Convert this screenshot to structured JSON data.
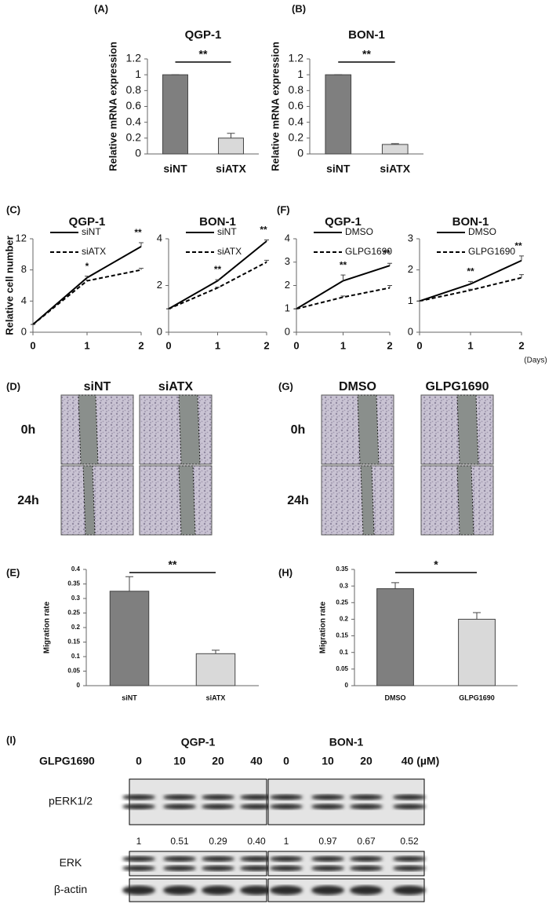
{
  "chart_data": [
    {
      "type": "bar",
      "panel": "(A)",
      "title": "QGP-1",
      "y_label": "Relative mRNA expression",
      "categories": [
        "siNT",
        "siATX"
      ],
      "values": [
        1,
        0.2
      ],
      "errors": [
        0,
        0.06
      ],
      "colors": [
        "#7f7f7f",
        "#d9d9d9"
      ],
      "ylim": [
        0,
        1.2
      ],
      "yticks": [
        0,
        0.2,
        0.4,
        0.6,
        0.8,
        1,
        1.2
      ],
      "significance": "**"
    },
    {
      "type": "bar",
      "panel": "(B)",
      "title": "BON-1",
      "y_label": "Relative mRNA expression",
      "categories": [
        "siNT",
        "siATX"
      ],
      "values": [
        1,
        0.12
      ],
      "errors": [
        0,
        0.01
      ],
      "colors": [
        "#7f7f7f",
        "#d9d9d9"
      ],
      "ylim": [
        0,
        1.2
      ],
      "yticks": [
        0,
        0.2,
        0.4,
        0.6,
        0.8,
        1,
        1.2
      ],
      "significance": "**"
    },
    {
      "type": "line",
      "panel": "(C)",
      "title": "QGP-1",
      "y_label": "Relative cell number",
      "x": [
        0,
        1,
        2
      ],
      "xlim": [
        0,
        2
      ],
      "xticks": [
        0,
        1,
        2
      ],
      "ylim": [
        0,
        12
      ],
      "yticks": [
        0,
        4,
        8,
        12
      ],
      "series": [
        {
          "name": "siNT",
          "color": "#000000",
          "dashed": false,
          "values": [
            1,
            7,
            11
          ],
          "errors": [
            0,
            0.2,
            0.5
          ]
        },
        {
          "name": "siATX",
          "color": "#000000",
          "dashed": true,
          "values": [
            1,
            6.6,
            8
          ],
          "errors": [
            0,
            0.1,
            0.2
          ]
        }
      ],
      "annotations": [
        {
          "text": "*",
          "x": 1
        },
        {
          "text": "**",
          "x": 2
        }
      ]
    },
    {
      "type": "line",
      "title": "BON-1",
      "x": [
        0,
        1,
        2
      ],
      "xlim": [
        0,
        2
      ],
      "xticks": [
        0,
        1,
        2
      ],
      "ylim": [
        0,
        4
      ],
      "yticks": [
        0,
        2,
        4
      ],
      "series": [
        {
          "name": "siNT",
          "color": "#000000",
          "dashed": false,
          "values": [
            1,
            2.2,
            3.9
          ],
          "errors": [
            0,
            0.05,
            0.05
          ]
        },
        {
          "name": "siATX",
          "color": "#000000",
          "dashed": true,
          "values": [
            1,
            1.9,
            3
          ],
          "errors": [
            0,
            0.03,
            0.08
          ]
        }
      ],
      "annotations": [
        {
          "text": "**",
          "x": 1
        },
        {
          "text": "**",
          "x": 2
        }
      ]
    },
    {
      "type": "line",
      "panel": "(F)",
      "title": "QGP-1",
      "x": [
        0,
        1,
        2
      ],
      "xlim": [
        0,
        2
      ],
      "xticks": [
        0,
        1,
        2
      ],
      "ylim": [
        0,
        4
      ],
      "yticks": [
        0,
        1,
        2,
        3,
        4
      ],
      "series": [
        {
          "name": "DMSO",
          "color": "#000000",
          "dashed": false,
          "values": [
            1,
            2.2,
            2.85
          ],
          "errors": [
            0,
            0.25,
            0.1
          ]
        },
        {
          "name": "GLPG1690",
          "color": "#000000",
          "dashed": true,
          "values": [
            1,
            1.5,
            1.9
          ],
          "errors": [
            0,
            0.05,
            0.1
          ]
        }
      ],
      "annotations": [
        {
          "text": "**",
          "x": 1
        },
        {
          "text": "**",
          "x": 2
        }
      ]
    },
    {
      "type": "line",
      "title": "BON-1",
      "x_label": "(Days)",
      "x": [
        0,
        1,
        2
      ],
      "xlim": [
        0,
        2
      ],
      "xticks": [
        0,
        1,
        2
      ],
      "ylim": [
        0,
        3
      ],
      "yticks": [
        0,
        1,
        2,
        3
      ],
      "series": [
        {
          "name": "DMSO",
          "color": "#000000",
          "dashed": false,
          "values": [
            1,
            1.55,
            2.3
          ],
          "errors": [
            0,
            0.08,
            0.15
          ]
        },
        {
          "name": "GLPG1690",
          "color": "#000000",
          "dashed": true,
          "values": [
            1,
            1.35,
            1.75
          ],
          "errors": [
            0,
            0.03,
            0.1
          ]
        }
      ],
      "annotations": [
        {
          "text": "**",
          "x": 1
        },
        {
          "text": "**",
          "x": 2
        }
      ]
    },
    {
      "type": "bar",
      "panel": "(E)",
      "y_label": "Migration rate",
      "categories": [
        "siNT",
        "siATX"
      ],
      "values": [
        0.325,
        0.11
      ],
      "errors": [
        0.05,
        0.012
      ],
      "colors": [
        "#7f7f7f",
        "#d9d9d9"
      ],
      "ylim": [
        0,
        0.4
      ],
      "yticks": [
        0,
        0.05,
        0.1,
        0.15,
        0.2,
        0.25,
        0.3,
        0.35,
        0.4
      ],
      "significance": "**"
    },
    {
      "type": "bar",
      "panel": "(H)",
      "y_label": "Migration rate",
      "categories": [
        "DMSO",
        "GLPG1690"
      ],
      "values": [
        0.292,
        0.2
      ],
      "errors": [
        0.018,
        0.02
      ],
      "colors": [
        "#7f7f7f",
        "#d9d9d9"
      ],
      "ylim": [
        0,
        0.35
      ],
      "yticks": [
        0,
        0.05,
        0.1,
        0.15,
        0.2,
        0.25,
        0.3,
        0.35
      ],
      "significance": "*"
    }
  ],
  "wound_assays": [
    {
      "panel": "(D)",
      "columns": [
        "siNT",
        "siATX"
      ],
      "rows": [
        "0h",
        "24h"
      ]
    },
    {
      "panel": "(G)",
      "columns": [
        "DMSO",
        "GLPG1690"
      ],
      "rows": [
        "0h",
        "24h"
      ]
    }
  ],
  "western_blot": {
    "panel": "(I)",
    "treatment": "GLPG1690",
    "rows": [
      "pERK1/2",
      "ERK",
      "β-actin"
    ],
    "cell_lines": [
      {
        "name": "QGP-1",
        "doses": [
          "0",
          "10",
          "20",
          "40"
        ],
        "pERK_quantification": [
          "1",
          "0.51",
          "0.29",
          "0.40"
        ]
      },
      {
        "name": "BON-1",
        "doses": [
          "0",
          "10",
          "20",
          "40 (µM)"
        ],
        "pERK_quantification": [
          "1",
          "0.97",
          "0.67",
          "0.52"
        ]
      }
    ]
  }
}
